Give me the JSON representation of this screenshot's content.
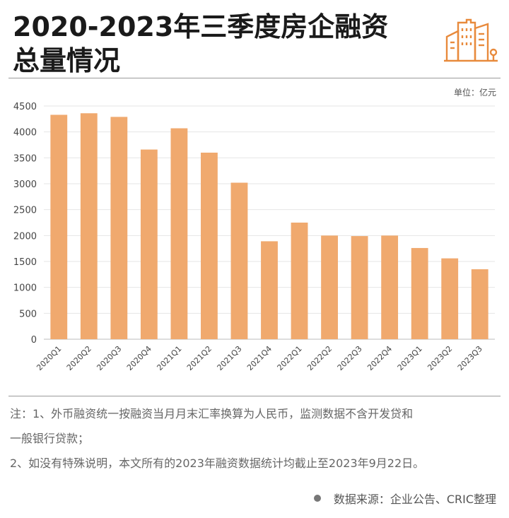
{
  "header": {
    "title_line1": "2020-2023年三季度房企融资",
    "title_line2": "总量情况",
    "logo_icon": "city-buildings-icon"
  },
  "unit_label": "单位：亿元",
  "colors": {
    "bar": "#f0a96e",
    "grid": "#e6e6e6",
    "accent": "#e88a3c"
  },
  "chart_data": {
    "type": "bar",
    "categories": [
      "2020Q1",
      "2020Q2",
      "2020Q3",
      "2020Q4",
      "2021Q1",
      "2021Q2",
      "2021Q3",
      "2021Q4",
      "2022Q1",
      "2022Q2",
      "2022Q3",
      "2022Q4",
      "2023Q1",
      "2023Q2",
      "2023Q3"
    ],
    "values": [
      4330,
      4360,
      4290,
      3660,
      4070,
      3600,
      3020,
      1890,
      2250,
      2000,
      1990,
      2000,
      1760,
      1560,
      1350
    ],
    "yticks": [
      0,
      500,
      1000,
      1500,
      2000,
      2500,
      3000,
      3500,
      4000,
      4500
    ],
    "ylim": [
      0,
      4500
    ],
    "grid": true,
    "title": "",
    "xlabel": "",
    "ylabel": ""
  },
  "notes": {
    "line1": "注：1、外币融资统一按融资当月月末汇率换算为人民币，监测数据不含开发贷和",
    "line2": "一般银行贷款；",
    "line3": "2、如没有特殊说明，本文所有的2023年融资数据统计均截止至2023年9月22日。"
  },
  "source": "数据来源：企业公告、CRIC整理"
}
